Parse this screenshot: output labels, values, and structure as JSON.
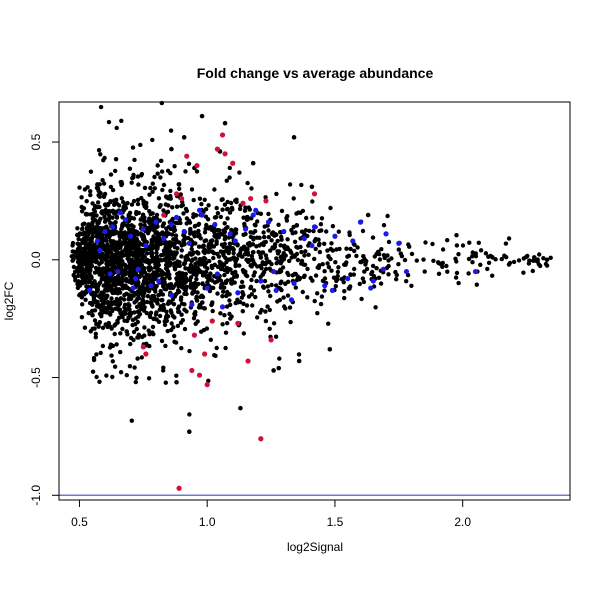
{
  "chart_data": {
    "type": "scatter",
    "title": "Fold change vs average abundance",
    "xlabel": "log2Signal",
    "ylabel": "log2FC",
    "xlim": [
      0.42,
      2.42
    ],
    "ylim": [
      -1.02,
      0.67
    ],
    "xticks": [
      0.5,
      1.0,
      1.5,
      2.0
    ],
    "xtick_labels": [
      "0.5",
      "1.0",
      "1.5",
      "2.0"
    ],
    "yticks": [
      -1.0,
      -0.5,
      0.0,
      0.5
    ],
    "ytick_labels": [
      "-1.0",
      "-0.5",
      "0.0",
      "0.5"
    ],
    "grid": false,
    "reference_line": {
      "y": -1.0,
      "color": "#6f78c8"
    },
    "colors": {
      "all": "#000000",
      "blue": "#1a1aee",
      "red": "#d0103a"
    },
    "series": [
      {
        "color_key": "red",
        "x": [
          0.89,
          0.94,
          0.97,
          1.0,
          1.04,
          1.06,
          0.88,
          0.92,
          1.1,
          1.17,
          1.21,
          1.42,
          0.95,
          1.02,
          1.12,
          0.99,
          0.96,
          1.14,
          1.25,
          1.23,
          0.76,
          0.75,
          0.9,
          1.07,
          1.16,
          0.83
        ],
        "y": [
          -0.97,
          -0.47,
          -0.49,
          -0.53,
          0.47,
          0.53,
          0.28,
          0.44,
          0.41,
          0.26,
          -0.76,
          0.28,
          -0.32,
          -0.26,
          -0.27,
          -0.4,
          0.4,
          0.24,
          -0.34,
          0.25,
          -0.4,
          -0.37,
          0.26,
          0.45,
          -0.43,
          0.19
        ]
      },
      {
        "color_key": "blue",
        "x": [
          0.54,
          0.57,
          0.6,
          0.63,
          0.65,
          0.68,
          0.7,
          0.72,
          0.75,
          0.78,
          0.8,
          0.83,
          0.86,
          0.88,
          0.91,
          0.94,
          0.97,
          1.0,
          1.03,
          1.06,
          1.09,
          1.12,
          1.15,
          1.18,
          1.21,
          1.24,
          1.27,
          1.3,
          1.34,
          1.38,
          1.42,
          1.46,
          1.5,
          1.55,
          1.6,
          1.65,
          1.7,
          1.75,
          1.78,
          2.05,
          0.62,
          0.66,
          0.71,
          0.76,
          0.81,
          0.86,
          0.93,
          0.98,
          1.04,
          1.11,
          1.19,
          1.26,
          1.33,
          1.41,
          1.49,
          1.57,
          1.64,
          1.69,
          0.58,
          0.73
        ],
        "y": [
          -0.13,
          0.08,
          0.12,
          0.14,
          -0.05,
          0.17,
          0.1,
          -0.08,
          0.13,
          -0.11,
          0.16,
          0.09,
          -0.15,
          0.18,
          0.12,
          -0.19,
          0.21,
          -0.12,
          0.15,
          -0.2,
          0.11,
          -0.14,
          0.13,
          0.19,
          -0.09,
          0.16,
          -0.13,
          0.12,
          -0.1,
          0.09,
          0.14,
          -0.11,
          0.1,
          -0.08,
          0.16,
          -0.09,
          0.11,
          0.07,
          -0.05,
          -0.05,
          -0.06,
          0.2,
          -0.12,
          0.06,
          -0.09,
          0.15,
          0.07,
          0.19,
          -0.06,
          0.08,
          0.21,
          -0.05,
          -0.17,
          0.06,
          -0.13,
          0.08,
          -0.12,
          -0.04,
          0.04,
          -0.04
        ]
      }
    ],
    "bulk": {
      "color_key": "all",
      "count": 2600,
      "x_range": [
        0.47,
        2.35
      ],
      "peak_x": 0.95,
      "core_spread": [
        0.15,
        0.02
      ],
      "scatter_spread": [
        0.24,
        0.04
      ]
    },
    "outliers_all": {
      "color_key": "all",
      "x": [
        0.98,
        1.07,
        1.34,
        0.93,
        1.13,
        1.26,
        0.91,
        0.86,
        0.82,
        1.05,
        1.18,
        1.36,
        1.28,
        1.41,
        0.95,
        0.89,
        2.33,
        2.28,
        1.63,
        0.88,
        1.48
      ],
      "y": [
        0.61,
        0.58,
        0.52,
        -0.73,
        -0.63,
        -0.47,
        0.52,
        0.47,
        0.42,
        0.46,
        0.41,
        -0.43,
        -0.46,
        0.31,
        0.39,
        0.32,
        0.0,
        0.01,
        0.19,
        -0.52,
        -0.38
      ]
    }
  }
}
